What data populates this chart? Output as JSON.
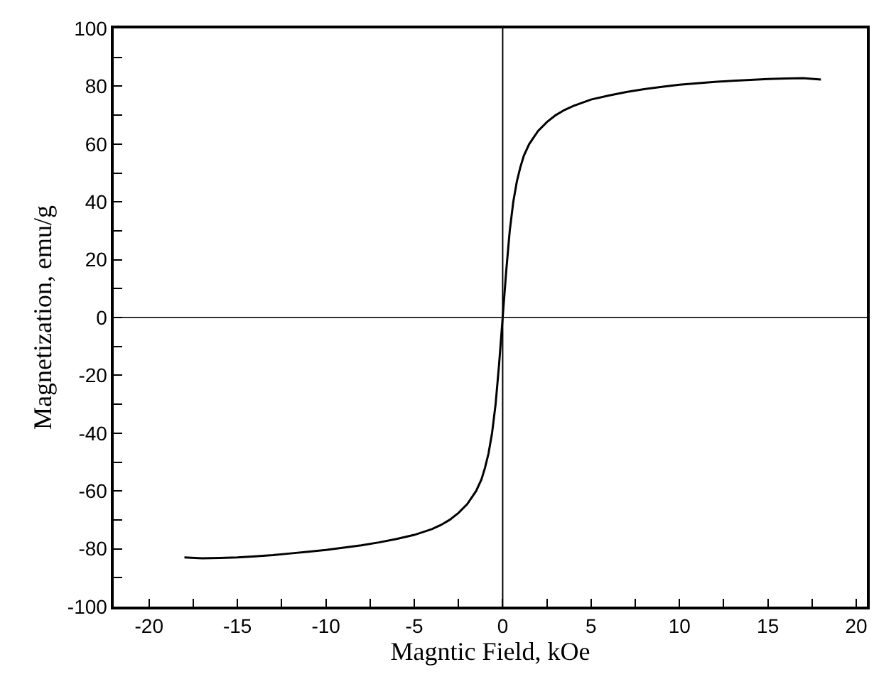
{
  "chart_data": {
    "type": "line",
    "xlabel": "Magntic Field, kOe",
    "ylabel": "Magnetization, emu/g",
    "series": [
      {
        "color": "#000000",
        "x": [
          -18,
          -17,
          -16,
          -15,
          -14,
          -13,
          -12,
          -11,
          -10,
          -9,
          -8,
          -7,
          -6,
          -5,
          -4,
          -3.5,
          -3,
          -2.5,
          -2,
          -1.5,
          -1.2,
          -1,
          -0.8,
          -0.6,
          -0.4,
          -0.3,
          -0.2,
          -0.1,
          0,
          0.1,
          0.2,
          0.3,
          0.4,
          0.6,
          0.8,
          1,
          1.2,
          1.5,
          2,
          2.5,
          3,
          3.5,
          4,
          5,
          6,
          7,
          8,
          9,
          10,
          11,
          12,
          13,
          14,
          15,
          16,
          17,
          18
        ],
        "values": [
          -83,
          -83.3,
          -83.2,
          -83,
          -82.6,
          -82.2,
          -81.6,
          -81,
          -80.4,
          -79.6,
          -78.8,
          -77.8,
          -76.6,
          -75.2,
          -73.2,
          -71.8,
          -70,
          -67.6,
          -64.5,
          -60,
          -56,
          -52,
          -47,
          -40,
          -30,
          -23,
          -16,
          -8,
          0,
          8,
          16,
          23,
          30,
          40,
          47,
          52,
          56,
          60,
          64.5,
          67.6,
          70,
          71.8,
          73.2,
          75.4,
          76.8,
          78,
          79,
          79.8,
          80.5,
          81,
          81.5,
          81.9,
          82.2,
          82.5,
          82.7,
          82.8,
          82.3
        ]
      }
    ],
    "xlim": [
      -22,
      20.6
    ],
    "xticks": [
      -20,
      {
        "value": -17.5,
        "label": null
      },
      -15,
      {
        "value": -12.5,
        "label": null
      },
      -10,
      {
        "value": -7.5,
        "label": null
      },
      -5,
      {
        "value": -2.5,
        "label": null
      },
      0,
      {
        "value": 2.5,
        "label": null
      },
      5,
      {
        "value": 7.5,
        "label": null
      },
      10,
      {
        "value": 12.5,
        "label": null
      },
      15,
      {
        "value": 17.5,
        "label": null
      },
      20
    ],
    "ylim": [
      -100,
      100
    ],
    "yticks": [
      -100,
      {
        "value": -90,
        "label": null
      },
      -80,
      {
        "value": -70,
        "label": null
      },
      -60,
      {
        "value": -50,
        "label": null
      },
      -40,
      {
        "value": -30,
        "label": null
      },
      -20,
      {
        "value": -10,
        "label": null
      },
      0,
      {
        "value": 10,
        "label": null
      },
      20,
      {
        "value": 30,
        "label": null
      },
      40,
      {
        "value": 50,
        "label": null
      },
      60,
      {
        "value": 70,
        "label": null
      },
      80,
      {
        "value": 90,
        "label": null
      },
      100
    ],
    "ref_lines": [
      {
        "axis": "x",
        "value": 0,
        "color": "#000000"
      },
      {
        "axis": "y",
        "value": 0,
        "color": "#333333"
      }
    ],
    "marker": "none",
    "line_style": "solid"
  }
}
